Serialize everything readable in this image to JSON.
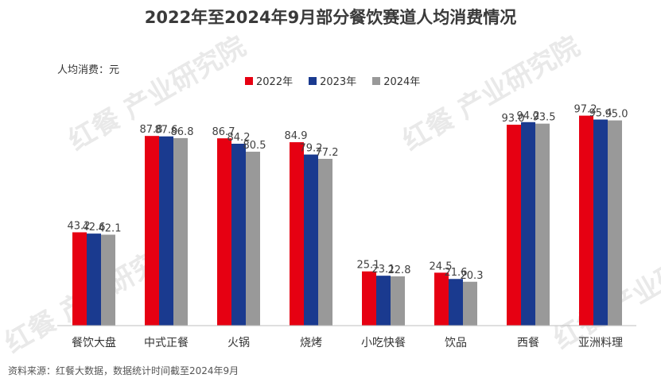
{
  "chart_data": {
    "type": "bar",
    "title": "2022年至2024年9月部分餐饮赛道人均消费情况",
    "unit_label": "人均消费：元",
    "categories": [
      "餐饮大盘",
      "中式正餐",
      "火锅",
      "烧烤",
      "小吃快餐",
      "饮品",
      "西餐",
      "亚洲料理"
    ],
    "series": [
      {
        "name": "2022年",
        "color": "#e60012",
        "values": [
          43.2,
          87.8,
          86.7,
          84.9,
          25.1,
          24.5,
          93.0,
          97.2
        ]
      },
      {
        "name": "2023年",
        "color": "#1a3a8f",
        "values": [
          42.6,
          87.6,
          84.2,
          79.2,
          23.1,
          21.6,
          94.2,
          95.4
        ]
      },
      {
        "name": "2024年",
        "color": "#999999",
        "values": [
          42.1,
          86.8,
          80.5,
          77.2,
          22.8,
          20.3,
          93.5,
          95.0
        ]
      }
    ],
    "legend_position": "top-center",
    "grid": false
  },
  "watermark_text": "红餐 产业研究院",
  "source_note": "资料来源：红餐大数据，数据统计时间截至2024年9月"
}
